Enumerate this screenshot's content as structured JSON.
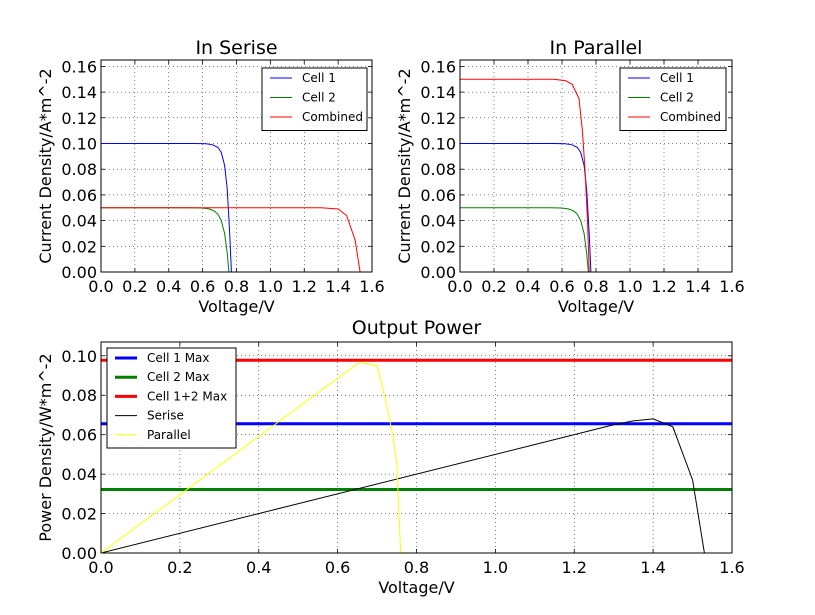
{
  "chart_data": [
    {
      "type": "line",
      "title": "In Serise",
      "xlabel": "Voltage/V",
      "ylabel": "Current Density/A*m^-2",
      "xlim": [
        0.0,
        1.6
      ],
      "ylim": [
        0.0,
        0.165
      ],
      "xticks": [
        "0.0",
        "0.2",
        "0.4",
        "0.6",
        "0.8",
        "1.0",
        "1.2",
        "1.4",
        "1.6"
      ],
      "yticks": [
        "0.00",
        "0.02",
        "0.04",
        "0.06",
        "0.08",
        "0.10",
        "0.12",
        "0.14",
        "0.16"
      ],
      "grid": true,
      "legend": "top-right",
      "series": [
        {
          "name": "Cell 1",
          "color": "#0000ff",
          "x": [
            0.0,
            0.55,
            0.62,
            0.66,
            0.69,
            0.71,
            0.73,
            0.745,
            0.76,
            0.77
          ],
          "y": [
            0.1,
            0.1,
            0.0998,
            0.099,
            0.097,
            0.093,
            0.083,
            0.065,
            0.03,
            0.0
          ]
        },
        {
          "name": "Cell 2",
          "color": "#008000",
          "x": [
            0.0,
            0.52,
            0.6,
            0.64,
            0.67,
            0.69,
            0.71,
            0.73,
            0.745,
            0.755
          ],
          "y": [
            0.05,
            0.05,
            0.0498,
            0.049,
            0.0475,
            0.045,
            0.04,
            0.03,
            0.015,
            0.0
          ]
        },
        {
          "name": "Combined",
          "color": "#ff0000",
          "x": [
            0.0,
            1.3,
            1.4,
            1.45,
            1.5,
            1.53
          ],
          "y": [
            0.05,
            0.05,
            0.049,
            0.044,
            0.025,
            0.0
          ]
        }
      ]
    },
    {
      "type": "line",
      "title": "In Parallel",
      "xlabel": "Voltage/V",
      "ylabel": "Current Density/A*m^-2",
      "xlim": [
        0.0,
        1.6
      ],
      "ylim": [
        0.0,
        0.165
      ],
      "xticks": [
        "0.0",
        "0.2",
        "0.4",
        "0.6",
        "0.8",
        "1.0",
        "1.2",
        "1.4",
        "1.6"
      ],
      "yticks": [
        "0.00",
        "0.02",
        "0.04",
        "0.06",
        "0.08",
        "0.10",
        "0.12",
        "0.14",
        "0.16"
      ],
      "grid": true,
      "legend": "top-right",
      "series": [
        {
          "name": "Cell 1",
          "color": "#0000ff",
          "x": [
            0.0,
            0.55,
            0.62,
            0.66,
            0.69,
            0.71,
            0.73,
            0.745,
            0.76,
            0.77
          ],
          "y": [
            0.1,
            0.1,
            0.0998,
            0.099,
            0.097,
            0.093,
            0.083,
            0.065,
            0.03,
            0.0
          ]
        },
        {
          "name": "Cell 2",
          "color": "#008000",
          "x": [
            0.0,
            0.52,
            0.6,
            0.64,
            0.67,
            0.69,
            0.71,
            0.73,
            0.745,
            0.755
          ],
          "y": [
            0.05,
            0.05,
            0.0498,
            0.049,
            0.0475,
            0.045,
            0.04,
            0.03,
            0.015,
            0.0
          ]
        },
        {
          "name": "Combined",
          "color": "#ff0000",
          "x": [
            0.0,
            0.55,
            0.62,
            0.66,
            0.7,
            0.72,
            0.735,
            0.75,
            0.76
          ],
          "y": [
            0.15,
            0.15,
            0.149,
            0.146,
            0.135,
            0.11,
            0.08,
            0.04,
            0.0
          ]
        }
      ]
    },
    {
      "type": "line",
      "title": "Output Power",
      "xlabel": "Voltage/V",
      "ylabel": "Power Density/W*m^-2",
      "xlim": [
        0.0,
        1.6
      ],
      "ylim": [
        0.0,
        0.107
      ],
      "xticks": [
        "0.0",
        "0.2",
        "0.4",
        "0.6",
        "0.8",
        "1.0",
        "1.2",
        "1.4",
        "1.6"
      ],
      "yticks": [
        "0.00",
        "0.02",
        "0.04",
        "0.06",
        "0.08",
        "0.10"
      ],
      "grid": true,
      "legend": "top-left",
      "series": [
        {
          "name": "Cell 1 Max",
          "color": "#0000ff",
          "width": 3,
          "x": [
            0.0,
            1.6
          ],
          "y": [
            0.0655,
            0.0655
          ]
        },
        {
          "name": "Cell 2 Max",
          "color": "#008000",
          "width": 3,
          "x": [
            0.0,
            1.6
          ],
          "y": [
            0.0322,
            0.0322
          ]
        },
        {
          "name": "Cell 1+2 Max",
          "color": "#ff0000",
          "width": 3,
          "x": [
            0.0,
            1.6
          ],
          "y": [
            0.0977,
            0.0977
          ]
        },
        {
          "name": "Serise",
          "color": "#000000",
          "width": 1,
          "x": [
            0.0,
            1.3,
            1.35,
            1.4,
            1.45,
            1.5,
            1.53
          ],
          "y": [
            0.0,
            0.065,
            0.067,
            0.068,
            0.064,
            0.037,
            0.0
          ]
        },
        {
          "name": "Parallel",
          "color": "#ffff00",
          "width": 1,
          "x": [
            0.0,
            0.65,
            0.66,
            0.7,
            0.72,
            0.74,
            0.75,
            0.76
          ],
          "y": [
            0.0,
            0.096,
            0.0965,
            0.095,
            0.079,
            0.06,
            0.045,
            0.0
          ]
        }
      ]
    }
  ]
}
